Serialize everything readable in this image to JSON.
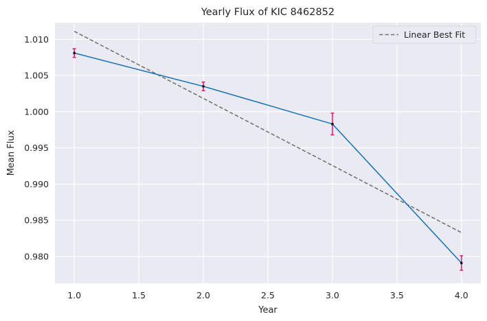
{
  "chart_data": {
    "type": "line",
    "title": "Yearly Flux of KIC 8462852",
    "xlabel": "Year",
    "ylabel": "Mean Flux",
    "xlim": [
      0.85,
      4.15
    ],
    "ylim": [
      0.9763,
      1.0123
    ],
    "xticks": [
      1.0,
      1.5,
      2.0,
      2.5,
      3.0,
      3.5,
      4.0
    ],
    "xtick_labels": [
      "1.0",
      "1.5",
      "2.0",
      "2.5",
      "3.0",
      "3.5",
      "4.0"
    ],
    "yticks": [
      0.98,
      0.985,
      0.99,
      0.995,
      1.0,
      1.005,
      1.01
    ],
    "ytick_labels": [
      "0.980",
      "0.985",
      "0.990",
      "0.995",
      "1.000",
      "1.005",
      "1.010"
    ],
    "grid": true,
    "legend_position": "top-right",
    "series": [
      {
        "kind": "errorbar-line",
        "x": [
          1,
          2,
          3,
          4
        ],
        "y": [
          1.0081,
          1.0035,
          0.9983,
          0.9791
        ],
        "yerr": [
          0.0006,
          0.0006,
          0.0015,
          0.001
        ],
        "line_color": "#1f77b4",
        "errorbar_color": "#e8147a",
        "marker_color": "#000000"
      },
      {
        "kind": "dashed-line",
        "name": "Linear Best Fit",
        "x": [
          1,
          4
        ],
        "y": [
          1.0111,
          0.9833
        ],
        "color": "#737373"
      }
    ]
  }
}
